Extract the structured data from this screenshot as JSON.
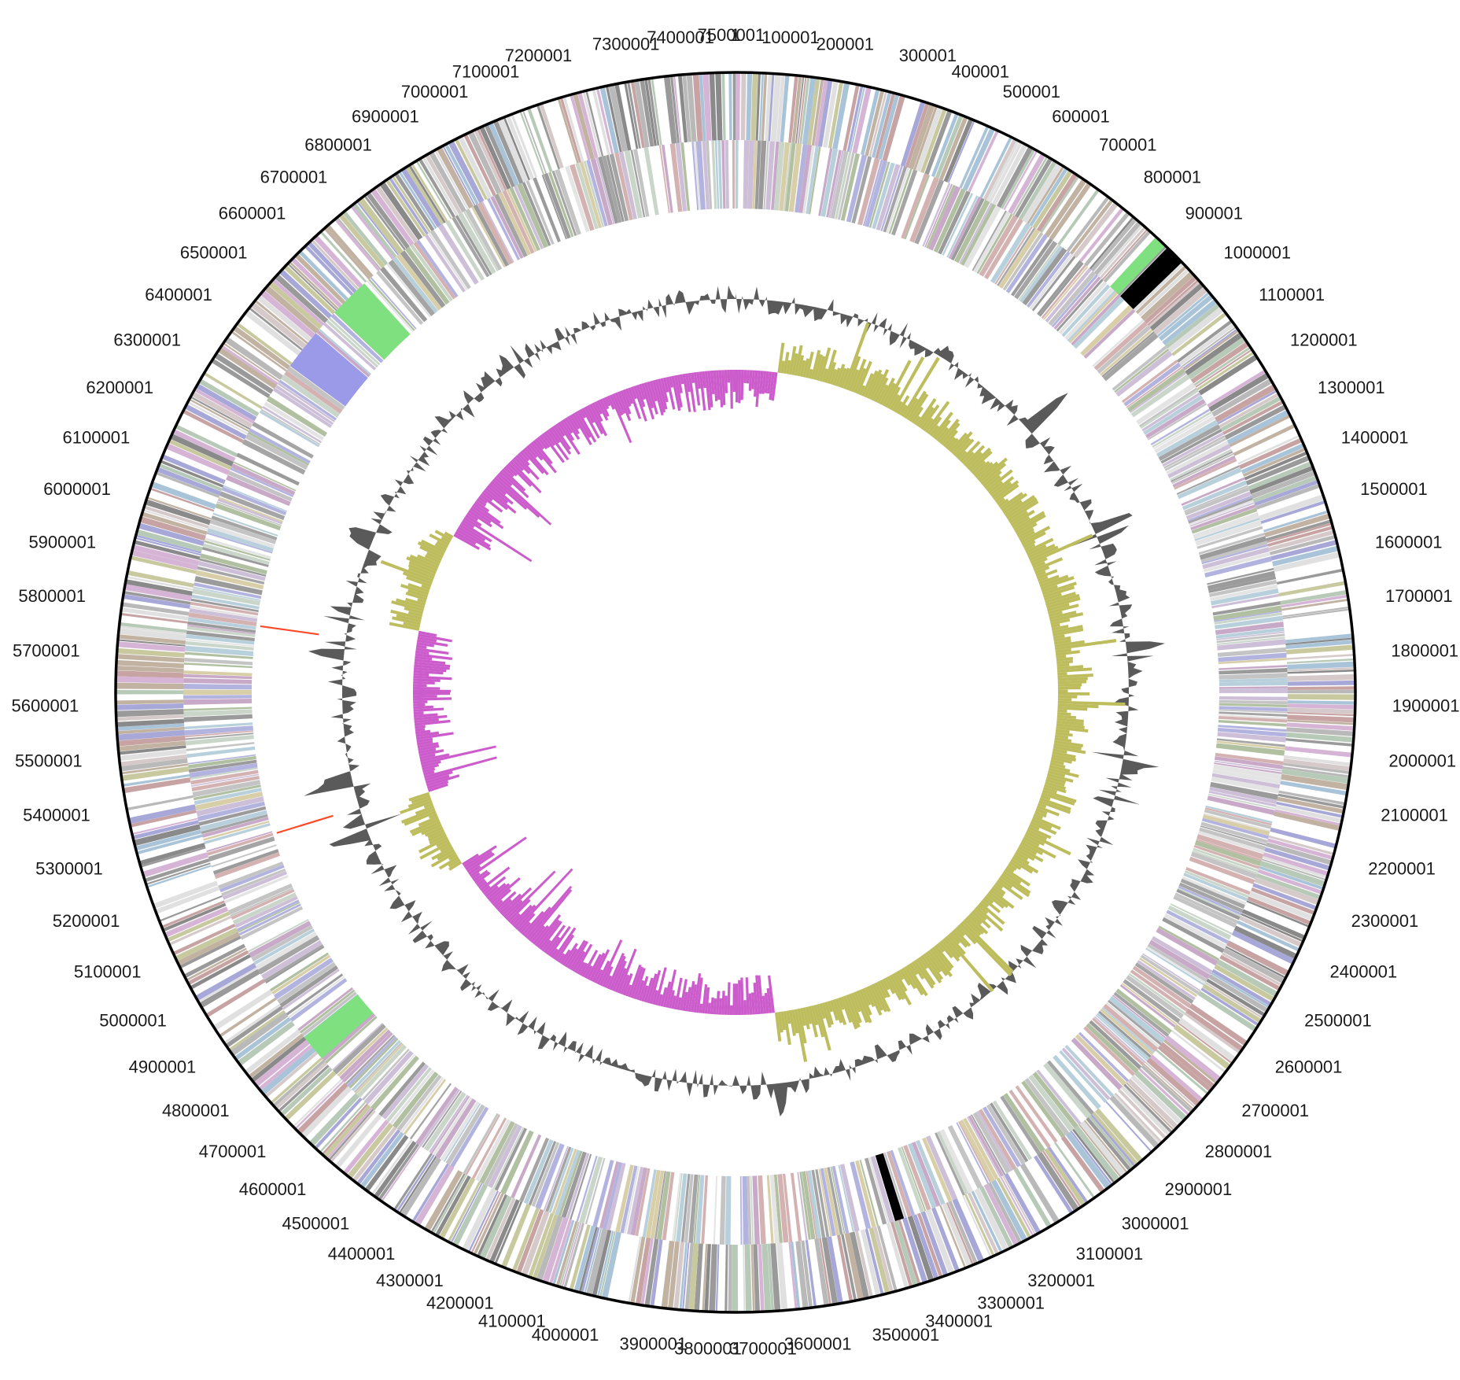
{
  "map": {
    "genome_length": 7500000,
    "start_position": 1,
    "tick_interval": 100000,
    "tick_labels": [
      "1",
      "100001",
      "200001",
      "300001",
      "400001",
      "500001",
      "600001",
      "700001",
      "800001",
      "900001",
      "1000001",
      "1100001",
      "1200001",
      "1300001",
      "1400001",
      "1500001",
      "1600001",
      "1700001",
      "1800001",
      "1900001",
      "2000001",
      "2100001",
      "2200001",
      "2300001",
      "2400001",
      "2500001",
      "2600001",
      "2700001",
      "2800001",
      "2900001",
      "3000001",
      "3100001",
      "3200001",
      "3300001",
      "3400001",
      "3500001",
      "3600001",
      "3700001",
      "3800001",
      "3900001",
      "4000001",
      "4100001",
      "4200001",
      "4300001",
      "4400001",
      "4500001",
      "4600001",
      "4700001",
      "4800001",
      "4900001",
      "5000001",
      "5100001",
      "5200001",
      "5300001",
      "5400001",
      "5500001",
      "5600001",
      "5700001",
      "5800001",
      "5900001",
      "6000001",
      "6100001",
      "6200001",
      "6300001",
      "6400001",
      "6500001",
      "6600001",
      "6700001",
      "6800001",
      "6900001",
      "7000001",
      "7100001",
      "7200001",
      "7300001",
      "7400001",
      "7500001"
    ]
  },
  "tracks": {
    "forward_cds_palette": [
      "#b9b9b9",
      "#9a9a9a",
      "#d6c9c9",
      "#c7a3a3",
      "#a7a7d8",
      "#b7c9b7",
      "#c9c9a0",
      "#d5b4d5",
      "#a9c4d8",
      "#e0e0e0",
      "#8a8a8a",
      "#c2b2a2"
    ],
    "reverse_cds_palette": [
      "#c4c4c4",
      "#a5a5a5",
      "#cdbfd8",
      "#b3b3e0",
      "#c9d6c9",
      "#d8cfa8",
      "#d4b2b2",
      "#b8d0dc",
      "#e4e4e4",
      "#9b9b9b",
      "#c8a9c8",
      "#b0c0a0"
    ],
    "accent_colors": {
      "green": "#7ee07e",
      "black": "#000000",
      "red": "#d24848",
      "blue": "#7f80e0"
    },
    "highlighted_regions": [
      {
        "track": "forward",
        "start": 920000,
        "end": 960000,
        "color": "#000000"
      },
      {
        "track": "forward",
        "start": 890000,
        "end": 915000,
        "color": "#7ee07e"
      },
      {
        "track": "reverse",
        "start": 6530000,
        "end": 6620000,
        "color": "#7ee07e"
      },
      {
        "track": "reverse",
        "start": 6380000,
        "end": 6470000,
        "color": "#9a9ae8"
      },
      {
        "track": "reverse",
        "start": 4760000,
        "end": 4820000,
        "color": "#7ee07e"
      },
      {
        "track": "reverse",
        "start": 3380000,
        "end": 3400000,
        "color": "#000000"
      }
    ],
    "rna_markers": [
      {
        "position": 5790000,
        "color": "#ff4a2a"
      },
      {
        "position": 5270000,
        "color": "#ff4a2a"
      }
    ],
    "gc_content": {
      "color": "#5a5a5a"
    },
    "gc_skew": {
      "positive_color": "#bdbd5e",
      "negative_color": "#cc5ccc"
    }
  }
}
